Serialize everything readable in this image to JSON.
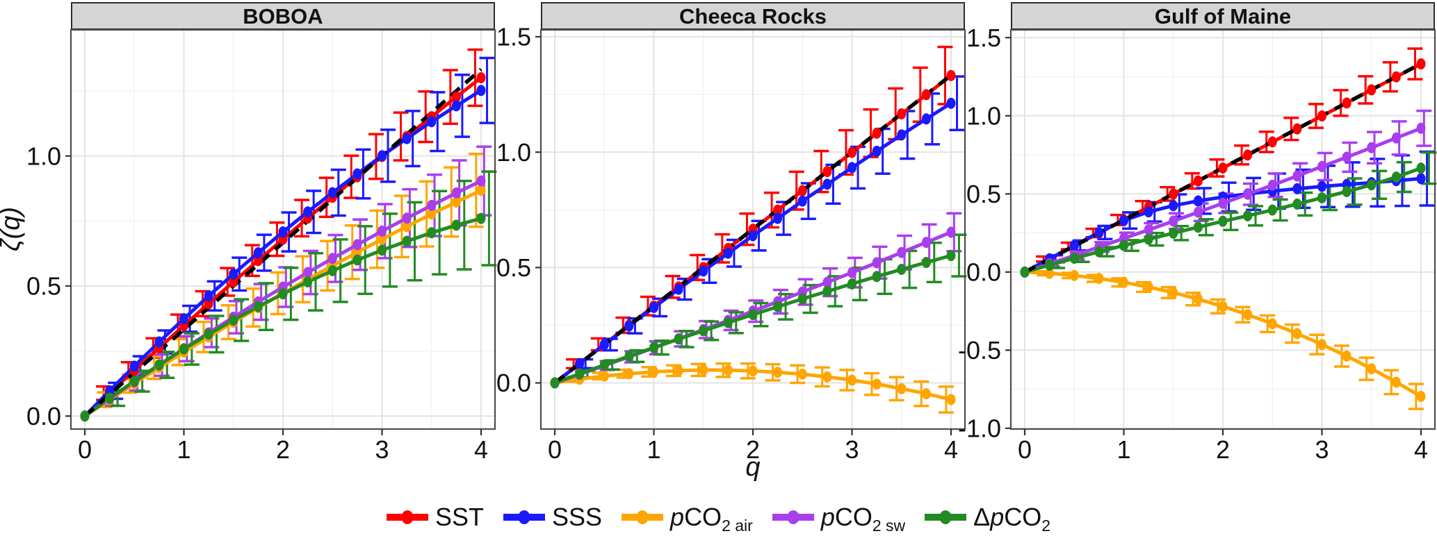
{
  "y_axis": {
    "label": "ζ(q)"
  },
  "x_axis": {
    "label": "q",
    "ticks": [
      "0",
      "1",
      "2",
      "3",
      "4"
    ]
  },
  "reference_line": {
    "description": "dashed black 1:1 Kolmogorov reference ζ(q)=q/3",
    "color": "#000000",
    "from": [
      0,
      0
    ],
    "to": [
      4,
      1.333
    ]
  },
  "colors": {
    "SST": "#FF0000",
    "SSS": "#1A1AFF",
    "pCO2_air": "#FFA500",
    "pCO2_sw": "#A93EEC",
    "dpCO2": "#228B22",
    "strip_fill": "#d5d5d5",
    "panel_border": "#4d4d4d",
    "grid_major": "#e3e3e3",
    "grid_minor": "#f1f1f1"
  },
  "legend": {
    "items": [
      {
        "id": "sst",
        "label": "SST",
        "color": "#FF0000",
        "parts": [
          {
            "t": "SST",
            "s": "n"
          }
        ]
      },
      {
        "id": "sss",
        "label": "SSS",
        "color": "#1A1AFF",
        "parts": [
          {
            "t": "SSS",
            "s": "n"
          }
        ]
      },
      {
        "id": "pco2-air",
        "label": "pCO2 air",
        "color": "#FFA500",
        "parts": [
          {
            "t": "p",
            "s": "i"
          },
          {
            "t": "CO",
            "s": "n"
          },
          {
            "t": "2 air",
            "s": "sub"
          }
        ]
      },
      {
        "id": "pco2-sw",
        "label": "pCO2 sw",
        "color": "#A93EEC",
        "parts": [
          {
            "t": "p",
            "s": "i"
          },
          {
            "t": "CO",
            "s": "n"
          },
          {
            "t": "2 sw",
            "s": "sub"
          }
        ]
      },
      {
        "id": "dpco2",
        "label": "ΔpCO2",
        "color": "#228B22",
        "parts": [
          {
            "t": "Δ",
            "s": "n"
          },
          {
            "t": "p",
            "s": "i"
          },
          {
            "t": "CO",
            "s": "n"
          },
          {
            "t": "2",
            "s": "sub"
          }
        ]
      }
    ]
  },
  "chart_data": [
    {
      "type": "line",
      "title": "BOBOA",
      "x": [
        0,
        0.25,
        0.5,
        0.75,
        1,
        1.25,
        1.5,
        1.75,
        2,
        2.25,
        2.5,
        2.75,
        3,
        3.25,
        3.5,
        3.75,
        4
      ],
      "xlim": [
        -0.14,
        4.14
      ],
      "ylim": [
        -0.05,
        1.485
      ],
      "ytick_values": [
        0,
        0.5,
        1.0
      ],
      "ytick_labels": [
        "0.0",
        "0.5",
        "1.0"
      ],
      "xtick_values": [
        0,
        1,
        2,
        3,
        4
      ],
      "reference": true,
      "series": [
        {
          "name": "SST",
          "color": "#FF0000",
          "dodge": -0.06,
          "values": [
            0,
            0.088,
            0.176,
            0.262,
            0.348,
            0.432,
            0.516,
            0.598,
            0.68,
            0.761,
            0.841,
            0.92,
            0.998,
            1.075,
            1.151,
            1.227,
            1.301
          ],
          "err": [
            0,
            0.026,
            0.031,
            0.037,
            0.042,
            0.048,
            0.053,
            0.059,
            0.064,
            0.07,
            0.075,
            0.081,
            0.086,
            0.092,
            0.097,
            0.103,
            0.108
          ]
        },
        {
          "name": "SSS",
          "color": "#1A1AFF",
          "dodge": 0.06,
          "values": [
            0,
            0.097,
            0.192,
            0.285,
            0.374,
            0.462,
            0.546,
            0.628,
            0.708,
            0.785,
            0.859,
            0.931,
            1.001,
            1.067,
            1.132,
            1.193,
            1.252
          ],
          "err": [
            0,
            0.031,
            0.038,
            0.044,
            0.05,
            0.056,
            0.063,
            0.069,
            0.075,
            0.081,
            0.088,
            0.094,
            0.1,
            0.106,
            0.113,
            0.119,
            0.125
          ]
        },
        {
          "name": "pCO2 air",
          "color": "#FFA500",
          "dodge": -0.05,
          "values": [
            0,
            0.063,
            0.125,
            0.186,
            0.246,
            0.304,
            0.361,
            0.417,
            0.472,
            0.526,
            0.578,
            0.63,
            0.68,
            0.729,
            0.777,
            0.823,
            0.868
          ],
          "err": [
            0,
            0.028,
            0.035,
            0.043,
            0.05,
            0.058,
            0.065,
            0.073,
            0.08,
            0.088,
            0.095,
            0.103,
            0.11,
            0.118,
            0.125,
            0.133,
            0.14
          ]
        },
        {
          "name": "pCO2 sw",
          "color": "#A93EEC",
          "dodge": 0.03,
          "values": [
            0,
            0.067,
            0.132,
            0.196,
            0.259,
            0.32,
            0.38,
            0.439,
            0.496,
            0.552,
            0.606,
            0.659,
            0.711,
            0.761,
            0.81,
            0.858,
            0.904
          ],
          "err": [
            0,
            0.027,
            0.034,
            0.041,
            0.048,
            0.055,
            0.062,
            0.069,
            0.076,
            0.083,
            0.09,
            0.097,
            0.104,
            0.111,
            0.118,
            0.125,
            0.132
          ]
        },
        {
          "name": "ΔpCO2",
          "color": "#228B22",
          "dodge": 0.08,
          "values": [
            0,
            0.069,
            0.134,
            0.197,
            0.258,
            0.315,
            0.369,
            0.421,
            0.47,
            0.516,
            0.559,
            0.6,
            0.638,
            0.672,
            0.705,
            0.734,
            0.76
          ],
          "err": [
            0,
            0.03,
            0.04,
            0.05,
            0.06,
            0.07,
            0.08,
            0.09,
            0.1,
            0.11,
            0.12,
            0.13,
            0.14,
            0.15,
            0.16,
            0.17,
            0.18
          ]
        }
      ]
    },
    {
      "type": "line",
      "title": "Cheeca Rocks",
      "x": [
        0,
        0.25,
        0.5,
        0.75,
        1,
        1.25,
        1.5,
        1.75,
        2,
        2.25,
        2.5,
        2.75,
        3,
        3.25,
        3.5,
        3.75,
        4
      ],
      "xlim": [
        -0.14,
        4.14
      ],
      "ylim": [
        -0.2,
        1.53
      ],
      "ytick_values": [
        0,
        0.5,
        1.0,
        1.5
      ],
      "ytick_labels": [
        "0.0",
        "0.5",
        "1.0",
        "1.5"
      ],
      "xtick_values": [
        0,
        1,
        2,
        3,
        4
      ],
      "reference": true,
      "series": [
        {
          "name": "SST",
          "color": "#FF0000",
          "dodge": -0.06,
          "values": [
            0,
            0.083,
            0.167,
            0.25,
            0.333,
            0.416,
            0.5,
            0.583,
            0.666,
            0.749,
            0.833,
            0.916,
            0.999,
            1.082,
            1.166,
            1.249,
            1.332
          ],
          "err": [
            0,
            0.019,
            0.026,
            0.033,
            0.04,
            0.047,
            0.054,
            0.061,
            0.068,
            0.075,
            0.082,
            0.089,
            0.096,
            0.103,
            0.11,
            0.117,
            0.124
          ]
        },
        {
          "name": "SSS",
          "color": "#1A1AFF",
          "dodge": 0.06,
          "values": [
            0,
            0.083,
            0.166,
            0.247,
            0.327,
            0.406,
            0.485,
            0.562,
            0.638,
            0.713,
            0.788,
            0.861,
            0.933,
            1.004,
            1.075,
            1.144,
            1.212
          ],
          "err": [
            0,
            0.019,
            0.025,
            0.032,
            0.038,
            0.045,
            0.051,
            0.058,
            0.064,
            0.071,
            0.077,
            0.084,
            0.09,
            0.097,
            0.103,
            0.11,
            0.116
          ]
        },
        {
          "name": "pCO2 air",
          "color": "#FFA500",
          "dodge": -0.05,
          "values": [
            0,
            0.016,
            0.03,
            0.04,
            0.048,
            0.053,
            0.056,
            0.055,
            0.052,
            0.046,
            0.038,
            0.026,
            0.012,
            -0.005,
            -0.025,
            -0.047,
            -0.072
          ],
          "err": [
            0,
            0.011,
            0.014,
            0.017,
            0.02,
            0.023,
            0.026,
            0.029,
            0.032,
            0.035,
            0.038,
            0.041,
            0.044,
            0.047,
            0.05,
            0.053,
            0.056
          ]
        },
        {
          "name": "pCO2 sw",
          "color": "#A93EEC",
          "dodge": 0.03,
          "values": [
            0,
            0.037,
            0.075,
            0.113,
            0.152,
            0.191,
            0.231,
            0.271,
            0.311,
            0.352,
            0.394,
            0.436,
            0.478,
            0.521,
            0.565,
            0.609,
            0.653
          ],
          "err": [
            0,
            0.015,
            0.019,
            0.024,
            0.028,
            0.033,
            0.037,
            0.042,
            0.046,
            0.051,
            0.055,
            0.06,
            0.064,
            0.069,
            0.073,
            0.078,
            0.082
          ]
        },
        {
          "name": "ΔpCO2",
          "color": "#228B22",
          "dodge": 0.08,
          "values": [
            0,
            0.039,
            0.078,
            0.116,
            0.153,
            0.19,
            0.226,
            0.261,
            0.296,
            0.33,
            0.364,
            0.397,
            0.429,
            0.461,
            0.492,
            0.522,
            0.552
          ],
          "err": [
            0,
            0.015,
            0.02,
            0.025,
            0.03,
            0.035,
            0.04,
            0.045,
            0.05,
            0.055,
            0.06,
            0.065,
            0.07,
            0.075,
            0.08,
            0.085,
            0.09
          ]
        }
      ]
    },
    {
      "type": "line",
      "title": "Gulf of Maine",
      "x": [
        0,
        0.25,
        0.5,
        0.75,
        1,
        1.25,
        1.5,
        1.75,
        2,
        2.25,
        2.5,
        2.75,
        3,
        3.25,
        3.5,
        3.75,
        4
      ],
      "xlim": [
        -0.14,
        4.14
      ],
      "ylim": [
        -1.005,
        1.55
      ],
      "ytick_values": [
        -1.0,
        -0.5,
        0,
        0.5,
        1.0,
        1.5
      ],
      "ytick_labels": [
        "-1.0",
        "-0.5",
        "0.0",
        "0.5",
        "1.0",
        "1.5"
      ],
      "xtick_values": [
        0,
        1,
        2,
        3,
        4
      ],
      "reference": true,
      "series": [
        {
          "name": "SST",
          "color": "#FF0000",
          "dodge": -0.06,
          "values": [
            0,
            0.083,
            0.167,
            0.25,
            0.333,
            0.416,
            0.5,
            0.583,
            0.666,
            0.749,
            0.833,
            0.916,
            0.999,
            1.082,
            1.166,
            1.249,
            1.332
          ],
          "err": [
            0,
            0.016,
            0.021,
            0.027,
            0.032,
            0.038,
            0.043,
            0.049,
            0.054,
            0.06,
            0.065,
            0.071,
            0.076,
            0.082,
            0.087,
            0.093,
            0.098
          ]
        },
        {
          "name": "SSS",
          "color": "#1A1AFF",
          "dodge": 0.06,
          "values": [
            0,
            0.085,
            0.17,
            0.253,
            0.33,
            0.385,
            0.425,
            0.455,
            0.48,
            0.5,
            0.518,
            0.533,
            0.548,
            0.56,
            0.572,
            0.585,
            0.598
          ],
          "err": [
            0,
            0.022,
            0.032,
            0.042,
            0.052,
            0.062,
            0.072,
            0.082,
            0.092,
            0.102,
            0.112,
            0.122,
            0.132,
            0.142,
            0.152,
            0.162,
            0.172
          ]
        },
        {
          "name": "pCO2 air",
          "color": "#FFA500",
          "dodge": -0.05,
          "values": [
            0,
            -0.008,
            -0.022,
            -0.041,
            -0.066,
            -0.096,
            -0.132,
            -0.173,
            -0.22,
            -0.273,
            -0.331,
            -0.394,
            -0.464,
            -0.538,
            -0.619,
            -0.705,
            -0.796
          ],
          "err": [
            0,
            0.013,
            0.017,
            0.022,
            0.026,
            0.031,
            0.035,
            0.04,
            0.044,
            0.049,
            0.053,
            0.058,
            0.062,
            0.067,
            0.071,
            0.076,
            0.08
          ]
        },
        {
          "name": "pCO2 sw",
          "color": "#A93EEC",
          "dodge": 0.03,
          "values": [
            0,
            0.053,
            0.106,
            0.16,
            0.215,
            0.27,
            0.326,
            0.383,
            0.44,
            0.498,
            0.556,
            0.615,
            0.675,
            0.735,
            0.796,
            0.858,
            0.92
          ],
          "err": [
            0,
            0.018,
            0.025,
            0.031,
            0.037,
            0.043,
            0.05,
            0.056,
            0.062,
            0.068,
            0.075,
            0.081,
            0.087,
            0.093,
            0.1,
            0.106,
            0.112
          ]
        },
        {
          "name": "ΔpCO2",
          "color": "#228B22",
          "dodge": 0.08,
          "values": [
            0,
            0.044,
            0.088,
            0.13,
            0.17,
            0.21,
            0.249,
            0.287,
            0.325,
            0.36,
            0.397,
            0.435,
            0.475,
            0.515,
            0.558,
            0.608,
            0.665
          ],
          "err": [
            0,
            0.018,
            0.023,
            0.029,
            0.034,
            0.04,
            0.045,
            0.051,
            0.056,
            0.062,
            0.067,
            0.073,
            0.078,
            0.084,
            0.089,
            0.095,
            0.1
          ]
        }
      ]
    }
  ]
}
